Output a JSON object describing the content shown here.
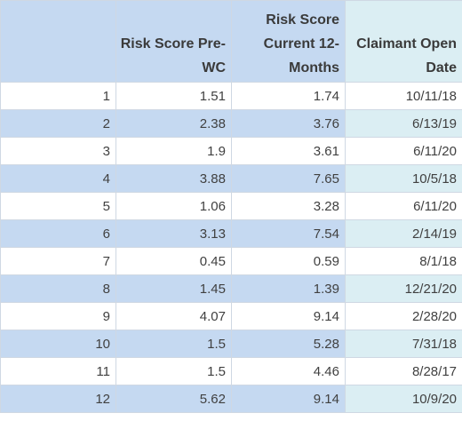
{
  "table": {
    "headers": [
      "",
      "Risk Score Pre-WC",
      "Risk Score Current 12-Months",
      "Claimant Open Date"
    ],
    "rows": [
      [
        "1",
        "1.51",
        "1.74",
        "10/11/18"
      ],
      [
        "2",
        "2.38",
        "3.76",
        "6/13/19"
      ],
      [
        "3",
        "1.9",
        "3.61",
        "6/11/20"
      ],
      [
        "4",
        "3.88",
        "7.65",
        "10/5/18"
      ],
      [
        "5",
        "1.06",
        "3.28",
        "6/11/20"
      ],
      [
        "6",
        "3.13",
        "7.54",
        "2/14/19"
      ],
      [
        "7",
        "0.45",
        "0.59",
        "8/1/18"
      ],
      [
        "8",
        "1.45",
        "1.39",
        "12/21/20"
      ],
      [
        "9",
        "4.07",
        "9.14",
        "2/28/20"
      ],
      [
        "10",
        "1.5",
        "5.28",
        "7/31/18"
      ],
      [
        "11",
        "1.5",
        "4.46",
        "8/28/17"
      ],
      [
        "12",
        "5.62",
        "9.14",
        "10/9/20"
      ]
    ],
    "colors": {
      "band_blue": "#c5d9f1",
      "band_teal": "#dbeef3",
      "grid": "#cfd8e3"
    }
  }
}
